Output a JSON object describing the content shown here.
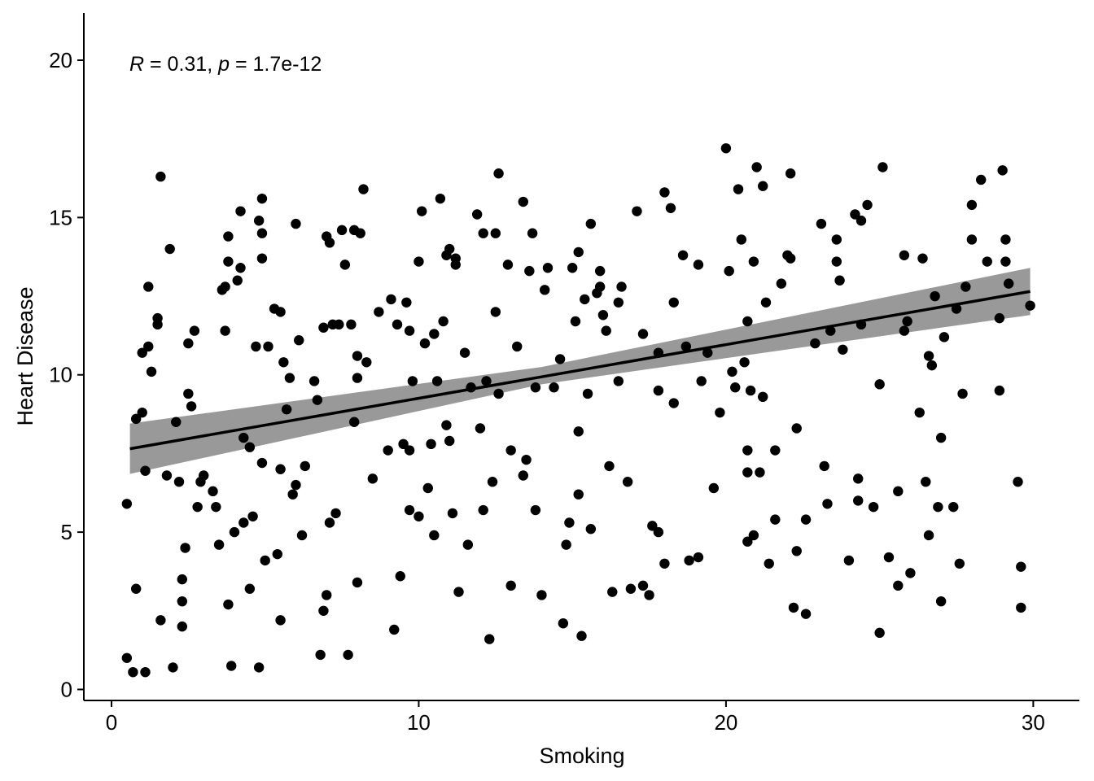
{
  "chart_data": {
    "type": "scatter",
    "title": "",
    "xlabel": "Smoking",
    "ylabel": "Heart Disease",
    "xlim": [
      -0.9,
      31.5
    ],
    "ylim": [
      -0.35,
      21.5
    ],
    "x_ticks": [
      0,
      10,
      20,
      30
    ],
    "y_ticks": [
      0,
      5,
      10,
      15,
      20
    ],
    "grid": false,
    "annotation": {
      "r_label": "R",
      "r_value": " = 0.31, ",
      "p_label": "p",
      "p_value": " = 1.7e-12"
    },
    "regression": {
      "x_range": [
        0.6,
        29.9
      ],
      "y_start": 7.65,
      "y_end": 12.65,
      "ci_start": [
        6.85,
        8.45
      ],
      "ci_mid": [
        9.7,
        10.25
      ],
      "ci_mid_x": 14.0,
      "ci_end": [
        11.9,
        13.4
      ]
    },
    "points": [
      [
        0.5,
        5.9
      ],
      [
        0.5,
        1.0
      ],
      [
        0.7,
        0.55
      ],
      [
        0.8,
        3.2
      ],
      [
        0.8,
        8.6
      ],
      [
        1.0,
        8.8
      ],
      [
        1.0,
        10.7
      ],
      [
        1.1,
        0.55
      ],
      [
        1.1,
        6.95
      ],
      [
        1.2,
        10.9
      ],
      [
        1.2,
        12.8
      ],
      [
        1.3,
        10.1
      ],
      [
        1.5,
        11.6
      ],
      [
        1.5,
        11.8
      ],
      [
        1.6,
        16.3
      ],
      [
        1.6,
        2.2
      ],
      [
        1.8,
        6.8
      ],
      [
        1.9,
        14.0
      ],
      [
        2.0,
        0.7
      ],
      [
        2.1,
        8.5
      ],
      [
        2.2,
        6.6
      ],
      [
        2.3,
        3.5
      ],
      [
        2.3,
        2.0
      ],
      [
        2.3,
        2.8
      ],
      [
        2.4,
        4.5
      ],
      [
        2.5,
        9.4
      ],
      [
        2.5,
        11.0
      ],
      [
        2.6,
        9.0
      ],
      [
        2.7,
        11.4
      ],
      [
        2.8,
        5.8
      ],
      [
        2.9,
        6.6
      ],
      [
        3.0,
        6.8
      ],
      [
        3.3,
        6.3
      ],
      [
        3.4,
        5.8
      ],
      [
        3.5,
        4.6
      ],
      [
        3.6,
        12.7
      ],
      [
        3.7,
        12.8
      ],
      [
        3.7,
        11.4
      ],
      [
        3.8,
        13.6
      ],
      [
        3.8,
        14.4
      ],
      [
        3.8,
        2.7
      ],
      [
        3.9,
        0.75
      ],
      [
        4.0,
        5.0
      ],
      [
        4.1,
        13.0
      ],
      [
        4.2,
        15.2
      ],
      [
        4.2,
        13.4
      ],
      [
        4.3,
        8.0
      ],
      [
        4.3,
        5.3
      ],
      [
        4.5,
        7.7
      ],
      [
        4.5,
        3.2
      ],
      [
        4.6,
        5.5
      ],
      [
        4.7,
        10.9
      ],
      [
        4.8,
        14.9
      ],
      [
        4.8,
        0.7
      ],
      [
        4.9,
        15.6
      ],
      [
        4.9,
        14.5
      ],
      [
        4.9,
        13.7
      ],
      [
        4.9,
        7.2
      ],
      [
        5.0,
        4.1
      ],
      [
        5.1,
        10.9
      ],
      [
        5.3,
        12.1
      ],
      [
        5.4,
        4.3
      ],
      [
        5.5,
        12.0
      ],
      [
        5.5,
        2.2
      ],
      [
        5.5,
        7.0
      ],
      [
        5.6,
        10.4
      ],
      [
        5.7,
        8.9
      ],
      [
        5.8,
        9.9
      ],
      [
        5.9,
        6.2
      ],
      [
        6.0,
        6.5
      ],
      [
        6.0,
        14.8
      ],
      [
        6.1,
        11.1
      ],
      [
        6.2,
        4.9
      ],
      [
        6.3,
        7.1
      ],
      [
        6.6,
        9.8
      ],
      [
        6.7,
        9.2
      ],
      [
        6.8,
        1.1
      ],
      [
        6.9,
        11.5
      ],
      [
        6.9,
        2.5
      ],
      [
        7.0,
        14.4
      ],
      [
        7.0,
        3.0
      ],
      [
        7.1,
        5.3
      ],
      [
        7.1,
        14.2
      ],
      [
        7.2,
        11.6
      ],
      [
        7.3,
        5.6
      ],
      [
        7.4,
        11.6
      ],
      [
        7.5,
        14.6
      ],
      [
        7.6,
        13.5
      ],
      [
        7.7,
        1.1
      ],
      [
        7.8,
        11.6
      ],
      [
        7.9,
        14.6
      ],
      [
        7.9,
        8.5
      ],
      [
        8.0,
        9.9
      ],
      [
        8.0,
        10.6
      ],
      [
        8.0,
        3.4
      ],
      [
        8.1,
        14.5
      ],
      [
        8.2,
        15.9
      ],
      [
        8.3,
        10.4
      ],
      [
        8.5,
        6.7
      ],
      [
        8.7,
        12.0
      ],
      [
        9.0,
        7.6
      ],
      [
        9.1,
        12.4
      ],
      [
        9.2,
        1.9
      ],
      [
        9.3,
        11.6
      ],
      [
        9.4,
        3.6
      ],
      [
        9.5,
        7.8
      ],
      [
        9.6,
        12.3
      ],
      [
        9.7,
        5.7
      ],
      [
        9.7,
        11.4
      ],
      [
        9.7,
        7.6
      ],
      [
        9.8,
        9.8
      ],
      [
        10.0,
        13.6
      ],
      [
        10.0,
        5.5
      ],
      [
        10.1,
        15.2
      ],
      [
        10.2,
        11.0
      ],
      [
        10.3,
        6.4
      ],
      [
        10.4,
        7.8
      ],
      [
        10.5,
        4.9
      ],
      [
        10.5,
        11.3
      ],
      [
        10.6,
        9.8
      ],
      [
        10.7,
        15.6
      ],
      [
        10.8,
        11.7
      ],
      [
        10.9,
        13.8
      ],
      [
        10.9,
        8.4
      ],
      [
        11.0,
        14.0
      ],
      [
        11.0,
        7.9
      ],
      [
        11.1,
        5.6
      ],
      [
        11.2,
        13.7
      ],
      [
        11.2,
        13.5
      ],
      [
        11.3,
        3.1
      ],
      [
        11.5,
        10.7
      ],
      [
        11.6,
        4.6
      ],
      [
        11.7,
        9.6
      ],
      [
        11.9,
        15.1
      ],
      [
        12.0,
        8.3
      ],
      [
        12.1,
        5.7
      ],
      [
        12.1,
        14.5
      ],
      [
        12.2,
        9.8
      ],
      [
        12.3,
        1.6
      ],
      [
        12.4,
        6.6
      ],
      [
        12.5,
        14.5
      ],
      [
        12.5,
        12.0
      ],
      [
        12.6,
        16.4
      ],
      [
        12.6,
        9.4
      ],
      [
        12.9,
        13.5
      ],
      [
        13.0,
        7.6
      ],
      [
        13.0,
        3.3
      ],
      [
        13.2,
        10.9
      ],
      [
        13.4,
        6.8
      ],
      [
        13.4,
        15.5
      ],
      [
        13.5,
        7.3
      ],
      [
        13.6,
        13.3
      ],
      [
        13.7,
        14.5
      ],
      [
        13.8,
        9.6
      ],
      [
        13.8,
        5.7
      ],
      [
        14.0,
        3.0
      ],
      [
        14.1,
        12.7
      ],
      [
        14.2,
        13.4
      ],
      [
        14.4,
        9.6
      ],
      [
        14.6,
        10.5
      ],
      [
        14.7,
        2.1
      ],
      [
        14.8,
        4.6
      ],
      [
        14.9,
        5.3
      ],
      [
        15.0,
        13.4
      ],
      [
        15.1,
        11.7
      ],
      [
        15.2,
        6.2
      ],
      [
        15.2,
        8.2
      ],
      [
        15.2,
        13.9
      ],
      [
        15.3,
        1.7
      ],
      [
        15.4,
        12.4
      ],
      [
        15.5,
        9.4
      ],
      [
        15.6,
        14.8
      ],
      [
        15.6,
        5.1
      ],
      [
        15.8,
        12.6
      ],
      [
        15.9,
        13.3
      ],
      [
        15.9,
        12.8
      ],
      [
        16.0,
        11.9
      ],
      [
        16.1,
        11.4
      ],
      [
        16.2,
        7.1
      ],
      [
        16.3,
        3.1
      ],
      [
        16.5,
        9.8
      ],
      [
        16.5,
        12.3
      ],
      [
        16.6,
        12.8
      ],
      [
        16.8,
        6.6
      ],
      [
        16.9,
        3.2
      ],
      [
        17.1,
        15.2
      ],
      [
        17.3,
        11.3
      ],
      [
        17.3,
        3.3
      ],
      [
        17.5,
        3.0
      ],
      [
        17.6,
        5.2
      ],
      [
        17.8,
        9.5
      ],
      [
        17.8,
        10.7
      ],
      [
        17.8,
        5.0
      ],
      [
        18.0,
        15.8
      ],
      [
        18.0,
        4.0
      ],
      [
        18.2,
        15.3
      ],
      [
        18.3,
        9.1
      ],
      [
        18.3,
        12.3
      ],
      [
        18.6,
        13.8
      ],
      [
        18.7,
        10.9
      ],
      [
        18.8,
        4.1
      ],
      [
        19.1,
        4.2
      ],
      [
        19.1,
        13.5
      ],
      [
        19.2,
        9.8
      ],
      [
        19.4,
        10.7
      ],
      [
        19.6,
        6.4
      ],
      [
        19.8,
        8.8
      ],
      [
        20.0,
        17.2
      ],
      [
        20.1,
        13.3
      ],
      [
        20.2,
        10.1
      ],
      [
        20.3,
        9.6
      ],
      [
        20.4,
        15.9
      ],
      [
        20.5,
        14.3
      ],
      [
        20.6,
        10.4
      ],
      [
        20.7,
        4.7
      ],
      [
        20.7,
        11.7
      ],
      [
        20.7,
        6.9
      ],
      [
        20.7,
        7.6
      ],
      [
        20.8,
        9.5
      ],
      [
        20.9,
        13.6
      ],
      [
        20.9,
        4.9
      ],
      [
        21.0,
        16.6
      ],
      [
        21.1,
        6.9
      ],
      [
        21.2,
        9.3
      ],
      [
        21.2,
        16.0
      ],
      [
        21.3,
        12.3
      ],
      [
        21.4,
        4.0
      ],
      [
        21.6,
        7.6
      ],
      [
        21.6,
        5.4
      ],
      [
        21.8,
        12.9
      ],
      [
        22.0,
        13.8
      ],
      [
        22.1,
        13.7
      ],
      [
        22.1,
        16.4
      ],
      [
        22.2,
        2.6
      ],
      [
        22.3,
        8.3
      ],
      [
        22.3,
        4.4
      ],
      [
        22.6,
        2.4
      ],
      [
        22.6,
        5.4
      ],
      [
        22.9,
        11.0
      ],
      [
        23.1,
        14.8
      ],
      [
        23.2,
        7.1
      ],
      [
        23.3,
        5.9
      ],
      [
        23.4,
        11.4
      ],
      [
        23.6,
        14.3
      ],
      [
        23.6,
        13.6
      ],
      [
        23.7,
        13.0
      ],
      [
        23.8,
        10.8
      ],
      [
        24.0,
        4.1
      ],
      [
        24.2,
        15.1
      ],
      [
        24.3,
        6.7
      ],
      [
        24.3,
        6.0
      ],
      [
        24.4,
        11.6
      ],
      [
        24.4,
        14.9
      ],
      [
        24.6,
        15.4
      ],
      [
        24.8,
        5.8
      ],
      [
        25.0,
        1.8
      ],
      [
        25.0,
        9.7
      ],
      [
        25.1,
        16.6
      ],
      [
        25.3,
        4.2
      ],
      [
        25.6,
        3.3
      ],
      [
        25.6,
        6.3
      ],
      [
        25.8,
        13.8
      ],
      [
        25.8,
        11.4
      ],
      [
        25.9,
        11.7
      ],
      [
        26.0,
        3.7
      ],
      [
        26.3,
        8.8
      ],
      [
        26.4,
        13.7
      ],
      [
        26.5,
        6.6
      ],
      [
        26.6,
        4.9
      ],
      [
        26.6,
        10.6
      ],
      [
        26.7,
        10.3
      ],
      [
        26.8,
        12.5
      ],
      [
        26.9,
        5.8
      ],
      [
        27.0,
        8.0
      ],
      [
        27.0,
        2.8
      ],
      [
        27.1,
        11.2
      ],
      [
        27.4,
        5.8
      ],
      [
        27.5,
        12.1
      ],
      [
        27.6,
        4.0
      ],
      [
        27.7,
        9.4
      ],
      [
        27.8,
        12.8
      ],
      [
        28.0,
        15.4
      ],
      [
        28.0,
        14.3
      ],
      [
        28.3,
        16.2
      ],
      [
        28.5,
        13.6
      ],
      [
        28.9,
        11.8
      ],
      [
        28.9,
        9.5
      ],
      [
        29.0,
        16.5
      ],
      [
        29.1,
        14.3
      ],
      [
        29.1,
        13.6
      ],
      [
        29.2,
        12.9
      ],
      [
        29.5,
        6.6
      ],
      [
        29.6,
        2.6
      ],
      [
        29.6,
        3.9
      ],
      [
        29.9,
        12.2
      ]
    ]
  }
}
